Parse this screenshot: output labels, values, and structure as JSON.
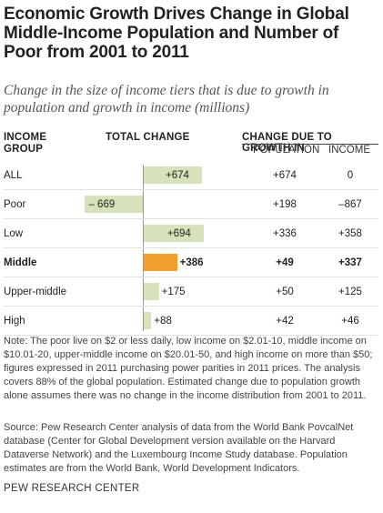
{
  "chart_data": {
    "type": "bar",
    "title": "Economic Growth Drives Change in Global Middle-Income Population and Number of Poor from 2001 to 2011",
    "subtitle": "Change in the size of income tiers that is due to growth in population and growth in income (millions)",
    "headers": {
      "group": "INCOME GROUP",
      "group_line1": "INCOME",
      "group_line2": "GROUP",
      "total": "TOTAL CHANGE",
      "due": "CHANGE DUE TO GROWTH IN",
      "population": "POPULATION",
      "income": "INCOME"
    },
    "categories": [
      "ALL",
      "Poor",
      "Low",
      "Middle",
      "Upper-middle",
      "High"
    ],
    "total_change": [
      674,
      -669,
      694,
      386,
      175,
      88
    ],
    "total_change_labels": [
      "+674",
      "– 669",
      "+694",
      "+386",
      "+175",
      "+88"
    ],
    "population": [
      "+674",
      "+198",
      "+336",
      "+49",
      "+50",
      "+42"
    ],
    "income": [
      "0",
      "–867",
      "+358",
      "+337",
      "+125",
      "+46"
    ],
    "highlight_category": "Middle",
    "colors": {
      "bar": "#d6e2b9",
      "highlight": "#f19e2e"
    }
  },
  "notes": {
    "note": "Note: The poor live on $2 or less daily, low income on $2.01-10, middle income on $10.01-20, upper-middle income on $20.01-50, and high income on more than $50; figures expressed in 2011 purchasing power parities in 2011 prices. The analysis covers 88% of the global population. Estimated change due to population growth alone assumes there was no change in the income distribution from 2001 to 2011.",
    "source": "Source: Pew Research Center analysis of data from the World Bank PovcalNet database (Center for Global Development version available on the Harvard Dataverse Network) and the Luxembourg Income Study database. Population estimates are from the World Bank, World Development Indicators.",
    "brand": "PEW RESEARCH CENTER"
  }
}
